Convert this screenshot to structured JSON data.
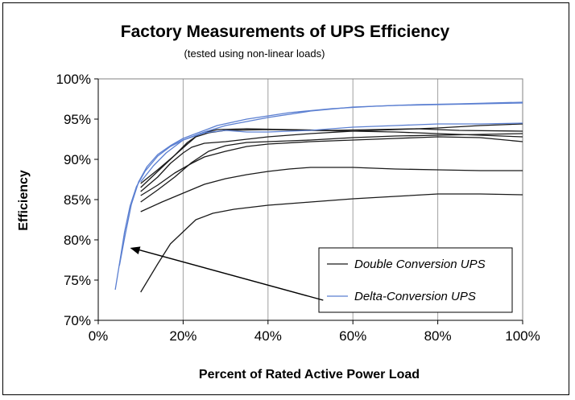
{
  "chart_data": {
    "type": "line",
    "title": "Factory Measurements of UPS Efficiency",
    "subtitle": "(tested using non-linear loads)",
    "xlabel": "Percent of Rated Active Power Load",
    "ylabel": "Efficiency",
    "xlim": [
      0,
      100
    ],
    "ylim": [
      70,
      100
    ],
    "x_ticks": [
      "0%",
      "20%",
      "40%",
      "60%",
      "80%",
      "100%"
    ],
    "y_ticks": [
      "70%",
      "75%",
      "80%",
      "85%",
      "90%",
      "95%",
      "100%"
    ],
    "grid": "vertical",
    "legend_position": "bottom-right",
    "legend": [
      "Double Conversion UPS",
      "Delta-Conversion UPS"
    ],
    "colors": {
      "double": "#1a1a1a",
      "delta": "#5b7fd1",
      "arrow": "#000000"
    },
    "series": [
      {
        "group": "double",
        "points": [
          [
            10,
            73.5
          ],
          [
            14,
            77
          ],
          [
            17,
            79.5
          ],
          [
            20,
            81
          ],
          [
            23,
            82.5
          ],
          [
            27,
            83.3
          ],
          [
            32,
            83.8
          ],
          [
            40,
            84.3
          ],
          [
            50,
            84.7
          ],
          [
            60,
            85.1
          ],
          [
            70,
            85.4
          ],
          [
            80,
            85.7
          ],
          [
            90,
            85.7
          ],
          [
            100,
            85.6
          ]
        ]
      },
      {
        "group": "double",
        "points": [
          [
            10,
            83.5
          ],
          [
            15,
            84.7
          ],
          [
            20,
            85.8
          ],
          [
            25,
            86.9
          ],
          [
            30,
            87.6
          ],
          [
            35,
            88.1
          ],
          [
            40,
            88.5
          ],
          [
            45,
            88.8
          ],
          [
            50,
            89
          ],
          [
            60,
            89
          ],
          [
            70,
            88.8
          ],
          [
            80,
            88.7
          ],
          [
            90,
            88.6
          ],
          [
            100,
            88.6
          ]
        ]
      },
      {
        "group": "double",
        "points": [
          [
            10,
            84.7
          ],
          [
            14,
            86.2
          ],
          [
            18,
            87.8
          ],
          [
            22,
            89.6
          ],
          [
            26,
            91
          ],
          [
            30,
            91.7
          ],
          [
            35,
            92.1
          ],
          [
            40,
            92.2
          ],
          [
            50,
            92.4
          ],
          [
            60,
            92.7
          ],
          [
            70,
            92.9
          ],
          [
            80,
            93
          ],
          [
            90,
            93.1
          ],
          [
            100,
            93.2
          ]
        ]
      },
      {
        "group": "double",
        "points": [
          [
            10,
            85.5
          ],
          [
            14,
            86.8
          ],
          [
            18,
            88.3
          ],
          [
            22,
            89.5
          ],
          [
            25,
            90.3
          ],
          [
            30,
            91
          ],
          [
            35,
            91.6
          ],
          [
            40,
            91.9
          ],
          [
            50,
            92.2
          ],
          [
            60,
            92.4
          ],
          [
            70,
            92.6
          ],
          [
            80,
            92.8
          ],
          [
            90,
            92.7
          ],
          [
            100,
            92.2
          ]
        ]
      },
      {
        "group": "double",
        "points": [
          [
            10,
            86
          ],
          [
            14,
            87.8
          ],
          [
            17,
            89.5
          ],
          [
            20,
            90.8
          ],
          [
            22,
            91.5
          ],
          [
            25,
            92
          ],
          [
            30,
            92.2
          ],
          [
            40,
            92.8
          ],
          [
            50,
            93.2
          ],
          [
            60,
            93.5
          ],
          [
            70,
            93.7
          ],
          [
            80,
            93.9
          ],
          [
            90,
            94.2
          ],
          [
            100,
            94.4
          ]
        ]
      },
      {
        "group": "double",
        "points": [
          [
            10,
            87
          ],
          [
            14,
            88.7
          ],
          [
            18,
            90.5
          ],
          [
            21,
            91.9
          ],
          [
            23,
            92.8
          ],
          [
            26,
            93.3
          ],
          [
            30,
            93.6
          ],
          [
            40,
            93.7
          ],
          [
            50,
            93.6
          ],
          [
            60,
            93.5
          ],
          [
            70,
            93.4
          ],
          [
            80,
            93.2
          ],
          [
            90,
            93
          ],
          [
            100,
            92.8
          ]
        ]
      },
      {
        "group": "double",
        "points": [
          [
            10,
            86.5
          ],
          [
            14,
            88.5
          ],
          [
            18,
            90.5
          ],
          [
            21,
            92.1
          ],
          [
            24,
            93.2
          ],
          [
            28,
            93.7
          ],
          [
            35,
            93.8
          ],
          [
            45,
            93.7
          ],
          [
            55,
            93.6
          ],
          [
            65,
            93.7
          ],
          [
            75,
            93.8
          ],
          [
            85,
            93.6
          ],
          [
            100,
            93.5
          ]
        ]
      },
      {
        "group": "delta",
        "points": [
          [
            4,
            73.8
          ],
          [
            5,
            77
          ],
          [
            6.2,
            81
          ],
          [
            7.5,
            84.2
          ],
          [
            9,
            86.6
          ],
          [
            11,
            88.5
          ],
          [
            14,
            90.4
          ],
          [
            17,
            91.6
          ],
          [
            20,
            92.4
          ],
          [
            25,
            93.4
          ],
          [
            30,
            94.2
          ],
          [
            40,
            95.2
          ],
          [
            50,
            96
          ],
          [
            60,
            96.5
          ],
          [
            70,
            96.7
          ],
          [
            80,
            96.8
          ],
          [
            90,
            96.9
          ],
          [
            100,
            97
          ]
        ]
      },
      {
        "group": "delta",
        "points": [
          [
            5,
            76.8
          ],
          [
            6.3,
            80.5
          ],
          [
            7.8,
            84.4
          ],
          [
            9.5,
            87.2
          ],
          [
            11.5,
            89.1
          ],
          [
            14,
            90.6
          ],
          [
            17,
            91.7
          ],
          [
            20,
            92.6
          ],
          [
            24,
            93.4
          ],
          [
            28,
            94.2
          ],
          [
            35,
            95
          ],
          [
            45,
            95.8
          ],
          [
            55,
            96.3
          ],
          [
            65,
            96.6
          ],
          [
            75,
            96.8
          ],
          [
            85,
            96.9
          ],
          [
            100,
            97.1
          ]
        ]
      },
      {
        "group": "delta",
        "points": [
          [
            10,
            87.2
          ],
          [
            13,
            89.2
          ],
          [
            16,
            90.8
          ],
          [
            20,
            92.4
          ],
          [
            25,
            93.3
          ],
          [
            30,
            93.6
          ],
          [
            35,
            93.4
          ],
          [
            40,
            93.4
          ],
          [
            50,
            93.6
          ],
          [
            60,
            94
          ],
          [
            70,
            94.2
          ],
          [
            80,
            94.4
          ],
          [
            90,
            94.4
          ],
          [
            100,
            94.5
          ]
        ]
      }
    ],
    "arrow": {
      "from": [
        53,
        72.5
      ],
      "to": [
        7.5,
        79
      ]
    }
  }
}
